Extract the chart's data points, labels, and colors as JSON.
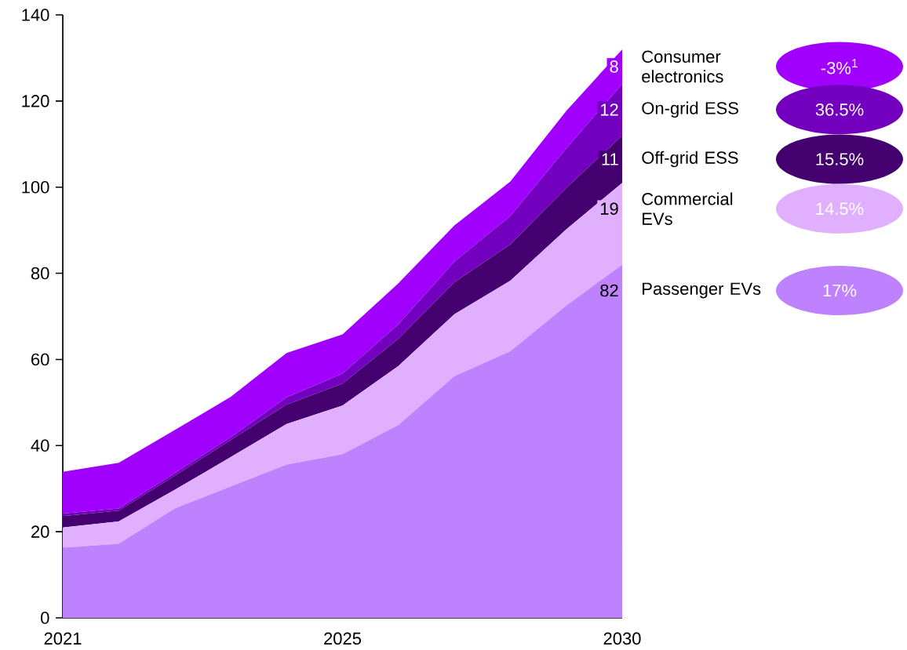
{
  "chart_data": {
    "type": "area",
    "stacked": true,
    "categories": [
      "2021",
      null,
      null,
      null,
      null,
      "2025",
      null,
      null,
      null,
      null,
      "2030"
    ],
    "ylim": [
      0,
      140
    ],
    "yticks": [
      0,
      20,
      40,
      60,
      80,
      100,
      120,
      140
    ],
    "legend": "right",
    "grid": false,
    "series": [
      {
        "name": "Passenger EVs",
        "color": "#bf82fe",
        "values": [
          16.3,
          17.2,
          25.4,
          30.5,
          35.6,
          38.0,
          44.8,
          56.1,
          61.9,
          72.5,
          82
        ],
        "value_labels": [
          null,
          null,
          null,
          null,
          null,
          null,
          null,
          null,
          null,
          null,
          "82"
        ]
      },
      {
        "name": "Commercial EVs",
        "color": "#e0b0ff",
        "values": [
          4.7,
          5.2,
          4.3,
          6.8,
          9.4,
          11.3,
          13.7,
          14.4,
          16.4,
          17.7,
          19
        ],
        "value_labels": [
          null,
          null,
          null,
          null,
          null,
          null,
          null,
          null,
          null,
          null,
          "19"
        ]
      },
      {
        "name": "Off-grid ESS",
        "color": "#44006e",
        "values": [
          2.6,
          2.5,
          3.3,
          4.0,
          4.5,
          5.1,
          6.3,
          7.4,
          8.4,
          9.6,
          11
        ],
        "value_labels": [
          null,
          null,
          null,
          null,
          null,
          null,
          null,
          null,
          null,
          null,
          "11"
        ]
      },
      {
        "name": "On-grid ESS",
        "color": "#7300bf",
        "values": [
          0.6,
          0.5,
          0.6,
          0.6,
          1.7,
          2.3,
          3.4,
          4.8,
          6.6,
          9.2,
          12
        ],
        "value_labels": [
          null,
          null,
          null,
          null,
          null,
          null,
          null,
          null,
          null,
          null,
          "12"
        ]
      },
      {
        "name": "Consumer electronics",
        "color": "#a100ff",
        "values": [
          9.7,
          10.6,
          10.0,
          9.4,
          10.3,
          9.1,
          9.5,
          8.4,
          8.0,
          8.7,
          8
        ],
        "value_labels": [
          null,
          null,
          null,
          null,
          null,
          null,
          null,
          null,
          null,
          null,
          "8"
        ]
      }
    ],
    "annotations": [
      "17%",
      "14.5%",
      "15.5%",
      "36.5%",
      "-3%$^{1}$"
    ]
  }
}
